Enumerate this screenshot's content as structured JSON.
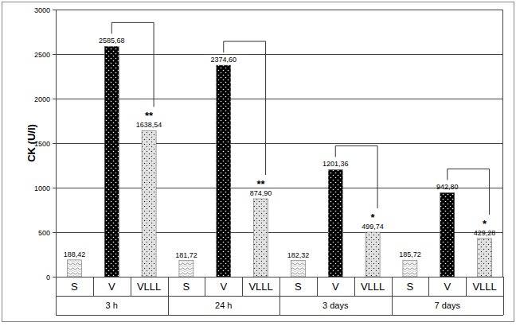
{
  "chart_data": {
    "type": "bar",
    "y_label": "CK (U/l)",
    "categories": [
      "3 h",
      "24 h",
      "3 days",
      "7 days"
    ],
    "series": [
      {
        "name": "S",
        "color": "#d0d0d0",
        "values": [
          188.42,
          181.72,
          182.32,
          185.72
        ],
        "value_labels": [
          "188,42",
          "181,72",
          "182,32",
          "185,72"
        ]
      },
      {
        "name": "V",
        "color": "#000000",
        "values": [
          2585.68,
          2374.6,
          1201.36,
          942.8
        ],
        "value_labels": [
          "2585,68",
          "2374,60",
          "1201,36",
          "942,80"
        ]
      },
      {
        "name": "VLLL",
        "color": "#e4e4e4",
        "values": [
          1638.54,
          874.9,
          499.74,
          429.28
        ],
        "value_labels": [
          "1638,54",
          "874,90",
          "499,74",
          "429,28"
        ]
      }
    ],
    "annotations": [
      "**",
      "**",
      "*",
      "*"
    ],
    "ylim": [
      0,
      3000
    ],
    "yticks": [
      0,
      500,
      1000,
      1500,
      2000,
      2500,
      3000
    ],
    "grid": true,
    "data_labels": true
  }
}
